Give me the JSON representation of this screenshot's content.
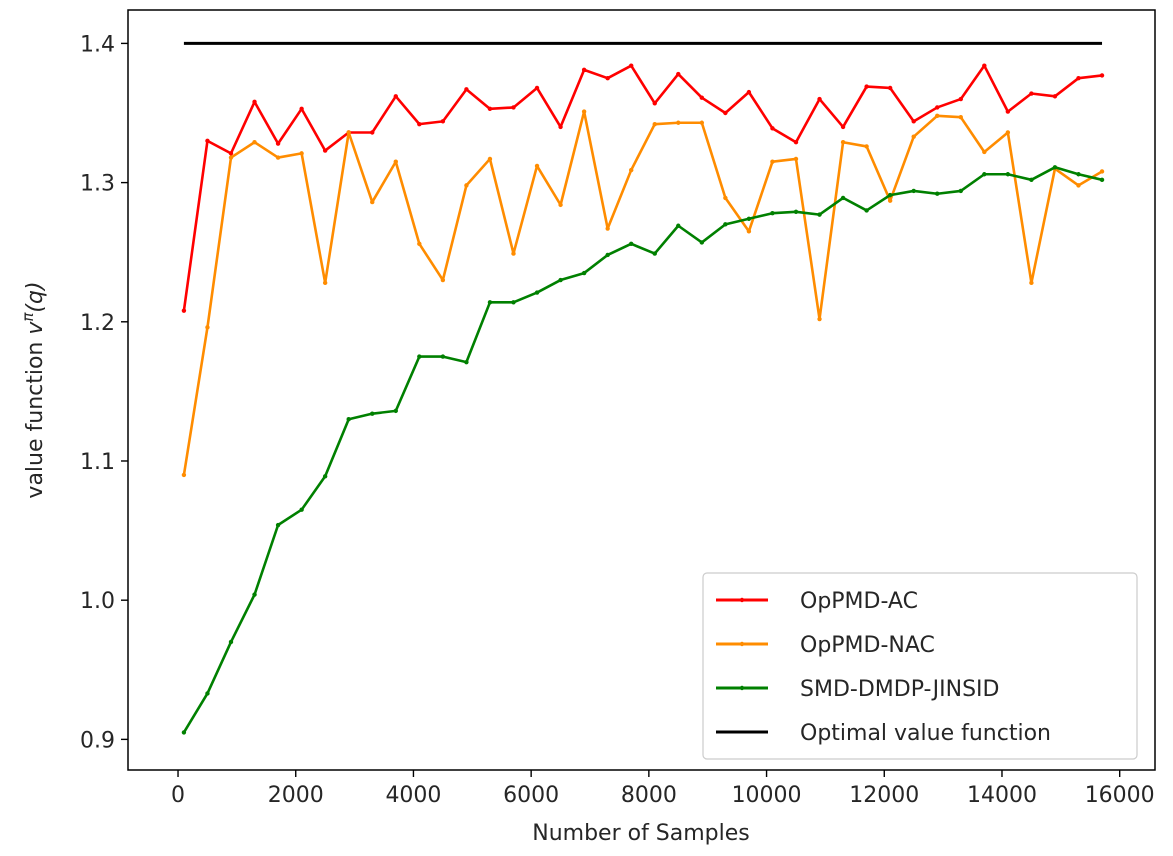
{
  "chart_data": {
    "type": "line",
    "title": "",
    "xlabel": "Number of Samples",
    "ylabel": {
      "prefix": "value function ",
      "symbol": "v",
      "superscript": "π",
      "suffix": "(q)"
    },
    "xlim": [
      -850,
      16600
    ],
    "ylim": [
      0.878,
      1.424
    ],
    "xticks": [
      0,
      2000,
      4000,
      6000,
      8000,
      10000,
      12000,
      14000,
      16000
    ],
    "xtick_labels": [
      "0",
      "2000",
      "4000",
      "6000",
      "8000",
      "10000",
      "12000",
      "14000",
      "16000"
    ],
    "yticks": [
      0.9,
      1.0,
      1.1,
      1.2,
      1.3,
      1.4
    ],
    "ytick_labels": [
      "0.9",
      "1.0",
      "1.1",
      "1.2",
      "1.3",
      "1.4"
    ],
    "grid": false,
    "legend_position": "lower-right",
    "x": [
      100,
      500,
      900,
      1300,
      1700,
      2100,
      2500,
      2900,
      3300,
      3700,
      4100,
      4500,
      4900,
      5300,
      5700,
      6100,
      6500,
      6900,
      7300,
      7700,
      8100,
      8500,
      8900,
      9300,
      9700,
      10100,
      10500,
      10900,
      11300,
      11700,
      12100,
      12500,
      12900,
      13300,
      13700,
      14100,
      14500,
      14900,
      15300,
      15700
    ],
    "series": [
      {
        "name": "OpPMD-AC",
        "color": "#ff0000",
        "values": [
          1.208,
          1.33,
          1.321,
          1.358,
          1.328,
          1.353,
          1.323,
          1.336,
          1.336,
          1.362,
          1.342,
          1.344,
          1.367,
          1.353,
          1.354,
          1.368,
          1.34,
          1.381,
          1.375,
          1.384,
          1.357,
          1.378,
          1.361,
          1.35,
          1.365,
          1.339,
          1.329,
          1.36,
          1.34,
          1.369,
          1.368,
          1.344,
          1.354,
          1.36,
          1.384,
          1.351,
          1.364,
          1.362,
          1.375,
          1.377
        ]
      },
      {
        "name": "OpPMD-NAC",
        "color": "#ff8c00",
        "values": [
          1.09,
          1.196,
          1.318,
          1.329,
          1.318,
          1.321,
          1.228,
          1.336,
          1.286,
          1.315,
          1.256,
          1.23,
          1.298,
          1.317,
          1.249,
          1.312,
          1.284,
          1.351,
          1.267,
          1.309,
          1.342,
          1.343,
          1.343,
          1.289,
          1.265,
          1.315,
          1.317,
          1.202,
          1.329,
          1.326,
          1.287,
          1.333,
          1.348,
          1.347,
          1.322,
          1.336,
          1.228,
          1.31,
          1.298,
          1.308
        ]
      },
      {
        "name": "SMD-DMDP-JINSID",
        "color": "#008000",
        "values": [
          0.905,
          0.933,
          0.97,
          1.004,
          1.054,
          1.065,
          1.089,
          1.13,
          1.134,
          1.136,
          1.175,
          1.175,
          1.171,
          1.214,
          1.214,
          1.221,
          1.23,
          1.235,
          1.248,
          1.256,
          1.249,
          1.269,
          1.257,
          1.27,
          1.274,
          1.278,
          1.279,
          1.277,
          1.289,
          1.28,
          1.291,
          1.294,
          1.292,
          1.294,
          1.306,
          1.306,
          1.302,
          1.311,
          1.306,
          1.302
        ]
      },
      {
        "name": "Optimal value function",
        "color": "#000000",
        "constant": 1.4,
        "x_range": [
          100,
          15700
        ]
      }
    ]
  }
}
